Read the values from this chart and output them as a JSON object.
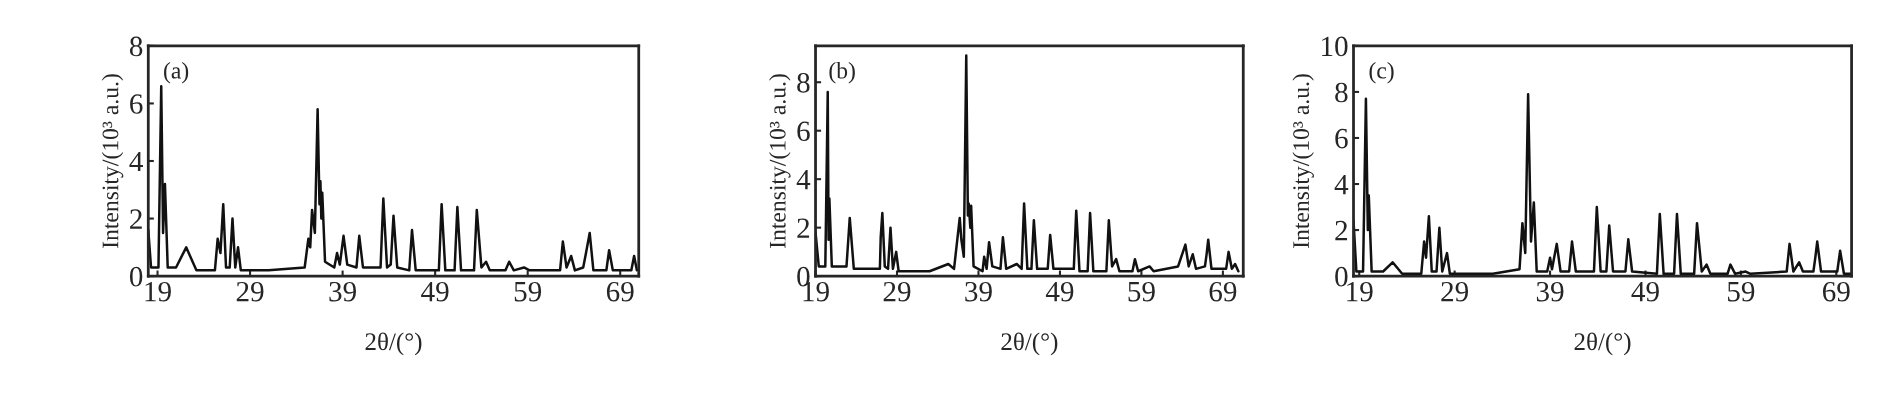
{
  "chart_data": [
    {
      "type": "line",
      "xlabel": "2θ/(°)",
      "ylabel": "Intensity/(10³ a.u.)",
      "annotations": [
        "(a)"
      ],
      "xlim": [
        18,
        71
      ],
      "ylim": [
        0,
        8
      ],
      "xticks": [
        19,
        29,
        39,
        49,
        59,
        69
      ],
      "yticks": [
        0,
        2,
        4,
        6,
        8
      ],
      "grid": false,
      "legend": false,
      "marker": "none",
      "line_style": "solid",
      "series": [
        {
          "color": "#111111",
          "x": [
            18.0,
            18.3,
            19.1,
            19.4,
            19.6,
            19.8,
            20.1,
            21.0,
            22.1,
            23.2,
            25.2,
            25.5,
            25.8,
            26.1,
            26.4,
            26.8,
            27.1,
            27.4,
            27.7,
            28.0,
            31.0,
            34.9,
            35.3,
            35.5,
            35.7,
            36.0,
            36.3,
            36.5,
            36.6,
            36.7,
            36.8,
            37.1,
            38.1,
            38.4,
            38.7,
            39.1,
            39.5,
            40.5,
            40.8,
            41.2,
            43.1,
            43.4,
            43.8,
            44.2,
            44.5,
            44.9,
            46.2,
            46.5,
            46.9,
            49.4,
            49.7,
            50.1,
            51.1,
            51.4,
            51.8,
            53.2,
            53.5,
            54.0,
            54.5,
            54.9,
            56.6,
            57.0,
            57.5,
            58.6,
            59.2,
            62.5,
            62.8,
            63.2,
            63.7,
            64.1,
            65.0,
            65.3,
            65.7,
            66.1,
            67.5,
            67.8,
            68.2,
            70.2,
            70.5,
            70.8
          ],
          "values": [
            1.6,
            0.3,
            0.3,
            6.6,
            1.5,
            3.2,
            0.3,
            0.3,
            1.0,
            0.2,
            0.2,
            1.3,
            0.8,
            2.5,
            0.3,
            0.3,
            2.0,
            0.3,
            1.0,
            0.2,
            0.2,
            0.3,
            1.3,
            1.0,
            2.3,
            1.5,
            5.8,
            2.5,
            3.3,
            2.0,
            2.9,
            0.5,
            0.3,
            0.8,
            0.4,
            1.4,
            0.4,
            0.3,
            1.4,
            0.3,
            0.3,
            2.7,
            0.3,
            0.4,
            2.1,
            0.3,
            0.2,
            1.6,
            0.2,
            0.2,
            2.5,
            0.2,
            0.2,
            2.4,
            0.2,
            0.2,
            2.3,
            0.3,
            0.5,
            0.2,
            0.2,
            0.5,
            0.2,
            0.3,
            0.2,
            0.2,
            1.2,
            0.3,
            0.7,
            0.2,
            0.3,
            0.8,
            1.5,
            0.2,
            0.2,
            0.9,
            0.2,
            0.2,
            0.7,
            0.2
          ]
        }
      ]
    },
    {
      "type": "line",
      "xlabel": "2θ/(°)",
      "ylabel": "Intensity/(10³ a.u.)",
      "annotations": [
        "(b)"
      ],
      "xlim": [
        19,
        71.5
      ],
      "ylim": [
        0,
        9.5
      ],
      "xticks": [
        19,
        29,
        39,
        49,
        59,
        69
      ],
      "yticks": [
        0,
        2,
        4,
        6,
        8
      ],
      "grid": false,
      "legend": false,
      "marker": "none",
      "line_style": "solid",
      "series": [
        {
          "color": "#111111",
          "x": [
            19.0,
            19.4,
            20.2,
            20.5,
            20.6,
            20.7,
            21.0,
            22.8,
            23.2,
            23.7,
            26.9,
            27.0,
            27.2,
            27.5,
            27.9,
            28.2,
            28.5,
            28.9,
            29.2,
            33.0,
            35.3,
            36.0,
            36.7,
            36.9,
            37.2,
            37.5,
            37.7,
            37.8,
            38.0,
            38.1,
            38.4,
            39.5,
            39.7,
            40.0,
            40.3,
            40.7,
            41.7,
            42.0,
            42.4,
            43.7,
            44.3,
            44.6,
            45.0,
            45.5,
            45.8,
            46.2,
            47.5,
            47.8,
            48.2,
            50.7,
            51.0,
            51.4,
            52.4,
            52.7,
            53.1,
            54.7,
            55.0,
            55.4,
            55.9,
            56.3,
            57.9,
            58.2,
            58.6,
            60.0,
            60.5,
            63.5,
            64.4,
            64.8,
            65.3,
            65.7,
            66.8,
            67.0,
            67.2,
            67.6,
            69.4,
            69.7,
            70.1,
            70.5,
            70.9
          ],
          "values": [
            1.8,
            0.4,
            0.4,
            7.6,
            1.5,
            3.2,
            0.4,
            0.4,
            2.4,
            0.3,
            0.3,
            1.6,
            2.6,
            0.4,
            0.3,
            2.0,
            0.3,
            1.0,
            0.2,
            0.2,
            0.5,
            0.3,
            2.4,
            1.5,
            0.8,
            9.1,
            2.5,
            3.0,
            2.0,
            2.9,
            0.4,
            0.2,
            0.8,
            0.3,
            1.4,
            0.4,
            0.3,
            1.6,
            0.3,
            0.5,
            0.3,
            3.0,
            0.3,
            0.3,
            2.3,
            0.3,
            0.3,
            1.7,
            0.3,
            0.3,
            2.7,
            0.2,
            0.2,
            2.6,
            0.2,
            0.2,
            2.3,
            0.4,
            0.7,
            0.2,
            0.2,
            0.7,
            0.2,
            0.4,
            0.2,
            0.4,
            1.3,
            0.4,
            0.9,
            0.3,
            0.4,
            0.9,
            1.5,
            0.3,
            0.3,
            1.0,
            0.3,
            0.5,
            0.2
          ]
        }
      ]
    },
    {
      "type": "line",
      "xlabel": "2θ/(°)",
      "ylabel": "Intensity/(10³ a.u.)",
      "annotations": [
        "(c)"
      ],
      "xlim": [
        18.4,
        70.6
      ],
      "ylim": [
        0,
        10
      ],
      "xticks": [
        19,
        29,
        39,
        49,
        59,
        69
      ],
      "yticks": [
        0,
        2,
        4,
        6,
        8,
        10
      ],
      "grid": false,
      "legend": false,
      "marker": "none",
      "line_style": "solid",
      "series": [
        {
          "color": "#111111",
          "x": [
            18.4,
            18.7,
            19.4,
            19.7,
            19.9,
            20.0,
            20.3,
            21.5,
            22.5,
            23.5,
            25.5,
            25.8,
            26.0,
            26.3,
            26.6,
            27.1,
            27.4,
            27.7,
            28.2,
            28.5,
            33.0,
            35.8,
            36.1,
            36.4,
            36.7,
            37.0,
            37.3,
            37.6,
            38.7,
            39.0,
            39.2,
            39.7,
            40.1,
            41.0,
            41.3,
            41.7,
            43.6,
            43.9,
            44.3,
            44.9,
            45.2,
            45.6,
            46.9,
            47.2,
            47.6,
            50.2,
            50.5,
            50.9,
            52.0,
            52.3,
            52.7,
            54.1,
            54.4,
            54.9,
            55.4,
            55.8,
            57.6,
            57.9,
            58.4,
            59.5,
            60.0,
            63.8,
            64.1,
            64.5,
            65.1,
            65.5,
            66.6,
            66.8,
            67.0,
            67.4,
            69.1,
            69.4,
            69.8,
            70.6
          ],
          "values": [
            2.4,
            0.2,
            0.2,
            7.7,
            2.0,
            3.5,
            0.2,
            0.2,
            0.6,
            0.1,
            0.1,
            1.5,
            0.8,
            2.6,
            0.2,
            0.2,
            2.1,
            0.2,
            1.0,
            0.1,
            0.1,
            0.3,
            2.3,
            1.0,
            7.9,
            1.5,
            3.2,
            0.2,
            0.2,
            0.8,
            0.3,
            1.4,
            0.2,
            0.2,
            1.5,
            0.2,
            0.2,
            3.0,
            0.2,
            0.2,
            2.2,
            0.2,
            0.2,
            1.6,
            0.2,
            0.1,
            2.7,
            0.1,
            0.1,
            2.7,
            0.1,
            0.1,
            2.3,
            0.2,
            0.5,
            0.1,
            0.1,
            0.5,
            0.1,
            0.2,
            0.1,
            0.2,
            1.4,
            0.2,
            0.6,
            0.2,
            0.2,
            0.8,
            1.5,
            0.2,
            0.2,
            1.1,
            0.1,
            0.1
          ]
        }
      ]
    }
  ]
}
